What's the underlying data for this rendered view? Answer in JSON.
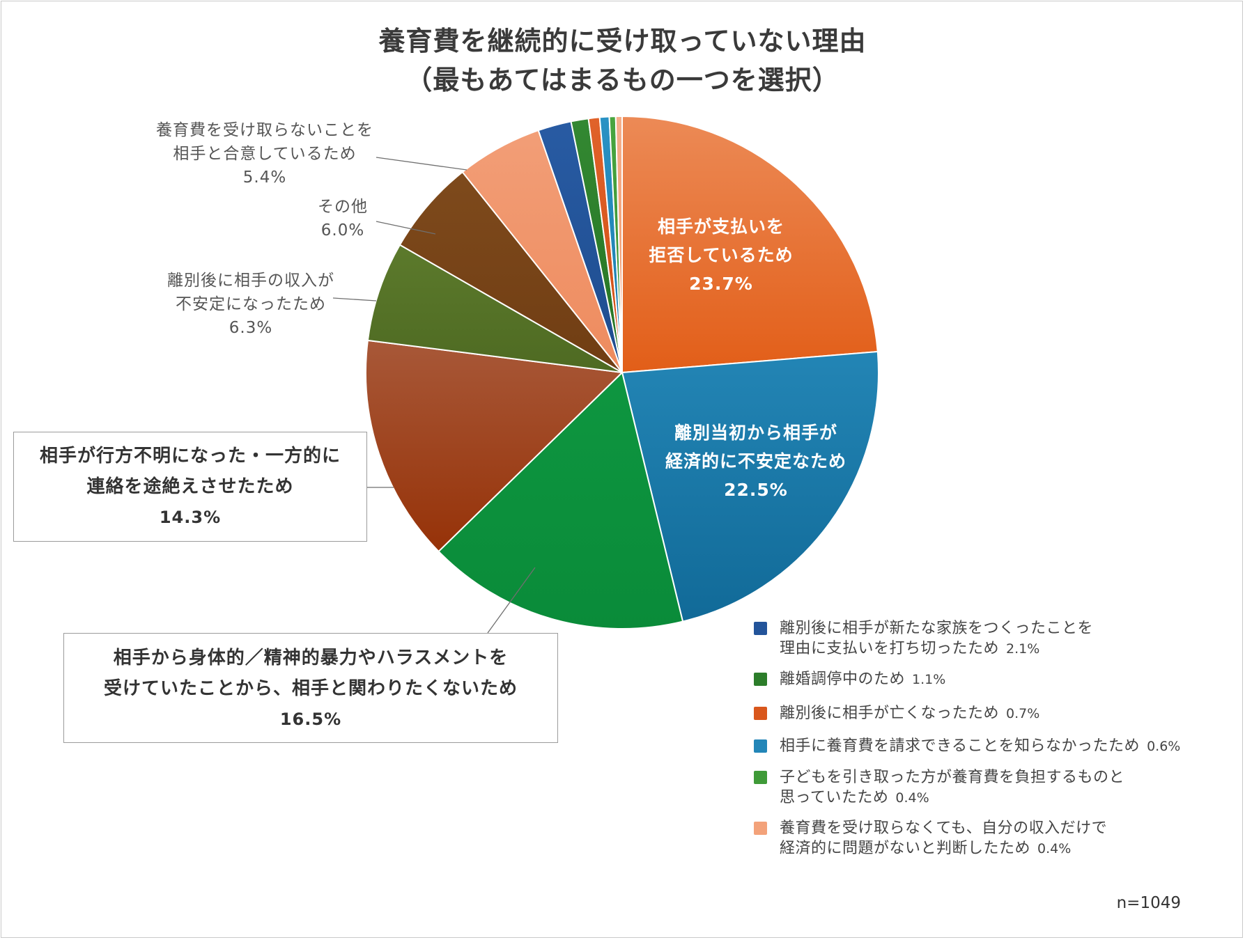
{
  "title": {
    "line1": "養育費を継続的に受け取っていない理由",
    "line2": "（最もあてはまるもの一つを選択）"
  },
  "sample": "n=1049",
  "chart_data": {
    "type": "pie",
    "title": "養育費を継続的に受け取っていない理由（最もあてはまるもの一つを選択）",
    "start": "12 o'clock, clockwise",
    "slices": [
      {
        "id": "refuse",
        "label": [
          "相手が支払いを",
          "拒否しているため"
        ],
        "pct_text": "23.7%",
        "value": 23.7,
        "color": "#E2641F",
        "gradient": [
          "#EC8A56",
          "#E25E18"
        ]
      },
      {
        "id": "unstable",
        "label": [
          "離別当初から相手が",
          "経済的に不安定なため"
        ],
        "pct_text": "22.5%",
        "value": 22.5,
        "color": "#1B77A6",
        "gradient": [
          "#2385B5",
          "#116A98"
        ]
      },
      {
        "id": "violence",
        "label": [
          "相手から身体的／精神的暴力やハラスメントを",
          "受けていたことから、相手と関わりたくないため"
        ],
        "pct_text": "16.5%",
        "value": 16.5,
        "color": "#0E9640",
        "gradient": [
          "#0E9640",
          "#0A8B39"
        ]
      },
      {
        "id": "missing",
        "label": [
          "相手が行方不明になった・一方的に",
          "連絡を途絶えさせたため"
        ],
        "pct_text": "14.3%",
        "value": 14.3,
        "color": "#9A3A10",
        "gradient": [
          "#A85838",
          "#963208"
        ]
      },
      {
        "id": "income",
        "label": [
          "離別後に相手の収入が",
          "不安定になったため"
        ],
        "pct_text": "6.3%",
        "value": 6.3,
        "color": "#557127",
        "gradient": [
          "#5C7A2C",
          "#4E6A22"
        ]
      },
      {
        "id": "other",
        "label": [
          "その他"
        ],
        "pct_text": "6.0%",
        "value": 6.0,
        "color": "#784317",
        "gradient": [
          "#7E4A1C",
          "#703D13"
        ]
      },
      {
        "id": "agree",
        "label": [
          "養育費を受け取らないことを",
          "相手と合意しているため"
        ],
        "pct_text": "5.4%",
        "value": 5.4,
        "color": "#F0946A",
        "gradient": [
          "#F29E77",
          "#EE8B5E"
        ]
      },
      {
        "id": "newfamily",
        "label": [
          "離別後に相手が新たな家族をつくったことを",
          "理由に支払いを打ち切ったため"
        ],
        "pct_text": "2.1%",
        "value": 2.1,
        "color": "#23549A",
        "gradient": [
          "#285BA3",
          "#1E4C8E"
        ]
      },
      {
        "id": "mediation",
        "label": [
          "離婚調停中のため"
        ],
        "pct_text": "1.1%",
        "value": 1.1,
        "color": "#2C7D2A",
        "gradient": [
          "#338832",
          "#267424"
        ]
      },
      {
        "id": "deceased",
        "label": [
          "離別後に相手が亡くなったため"
        ],
        "pct_text": "0.7%",
        "value": 0.7,
        "color": "#D9571C",
        "gradient": [
          "#E0622A",
          "#D04E14"
        ]
      },
      {
        "id": "unaware",
        "label": [
          "相手に養育費を請求できることを知らなかったため"
        ],
        "pct_text": "0.6%",
        "value": 0.6,
        "color": "#2386B8",
        "gradient": [
          "#2A92C4",
          "#1C7BAC"
        ]
      },
      {
        "id": "burden",
        "label": [
          "子どもを引き取った方が養育費を負担するものと",
          "思っていたため"
        ],
        "pct_text": "0.4%",
        "value": 0.4,
        "color": "#3F9A38",
        "gradient": [
          "#48A540",
          "#378E30"
        ]
      },
      {
        "id": "selfinc",
        "label": [
          "養育費を受け取らなくても、自分の収入だけで",
          "経済的に問題がないと判断したため"
        ],
        "pct_text": "0.4%",
        "value": 0.4,
        "color": "#F3A27A",
        "gradient": [
          "#F5AE8A",
          "#F0986C"
        ]
      }
    ]
  },
  "legend": [
    {
      "swatch": "#23549A",
      "lines": [
        "離別後に相手が新たな家族をつくったことを",
        "理由に支払いを打ち切ったため"
      ],
      "value": "2.1%"
    },
    {
      "swatch": "#2C7D2A",
      "lines": [
        "離婚調停中のため"
      ],
      "value": "1.1%"
    },
    {
      "swatch": "#D9571C",
      "lines": [
        "離別後に相手が亡くなったため"
      ],
      "value": "0.7%"
    },
    {
      "swatch": "#2386B8",
      "lines": [
        "相手に養育費を請求できることを知らなかったため"
      ],
      "value": "0.6%"
    },
    {
      "swatch": "#3F9A38",
      "lines": [
        "子どもを引き取った方が養育費を負担するものと",
        "思っていたため"
      ],
      "value": "0.4%"
    },
    {
      "swatch": "#F3A27A",
      "lines": [
        "養育費を受け取らなくても、自分の収入だけで",
        "経済的に問題がないと判断したため"
      ],
      "value": "0.4%"
    }
  ]
}
